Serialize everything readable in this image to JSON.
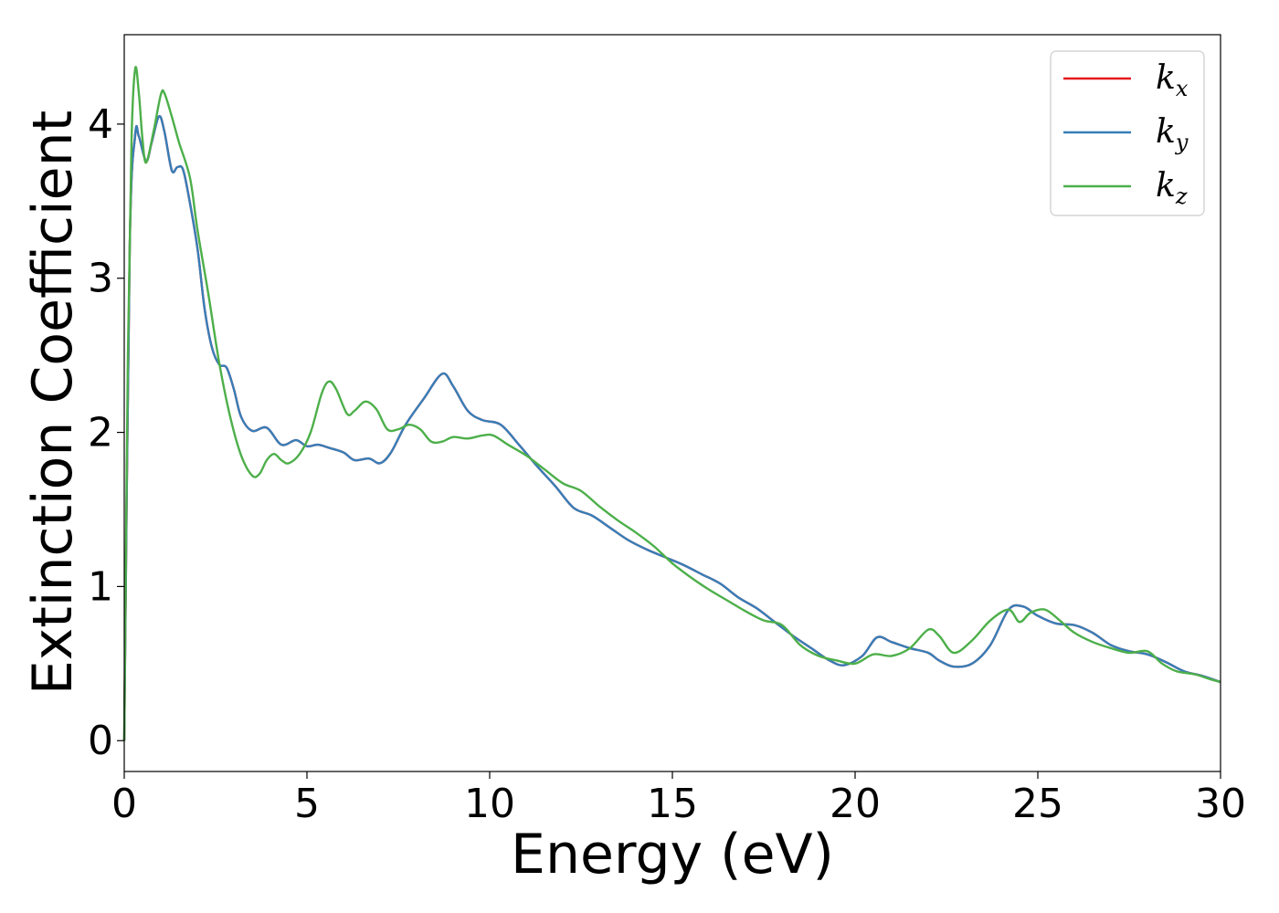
{
  "chart_data": {
    "type": "line",
    "xlabel": "Energy (eV)",
    "ylabel": "Extinction Coefficient",
    "xlim": [
      0,
      30
    ],
    "ylim": [
      -0.2,
      4.58
    ],
    "xticks": [
      "0",
      "5",
      "10",
      "15",
      "20",
      "25",
      "30"
    ],
    "yticks": [
      "0",
      "1",
      "2",
      "3",
      "4"
    ],
    "grid": false,
    "legend": {
      "placement": "top-right",
      "entries": [
        {
          "base": "k",
          "sub": "x",
          "color": "#e41a1c"
        },
        {
          "base": "k",
          "sub": "y",
          "color": "#377eb8"
        },
        {
          "base": "k",
          "sub": "z",
          "color": "#4daf4a"
        }
      ]
    },
    "series": [
      {
        "name": "kx",
        "color": "#e41a1c",
        "x": [
          0,
          0.15,
          0.3,
          0.4,
          0.6,
          0.75,
          0.95,
          1.1,
          1.3,
          1.45,
          1.6,
          1.75,
          2.0,
          2.2,
          2.4,
          2.6,
          2.8,
          3.0,
          3.2,
          3.5,
          3.9,
          4.3,
          4.7,
          5.0,
          5.3,
          5.6,
          6.0,
          6.3,
          6.7,
          7.0,
          7.3,
          7.7,
          8.2,
          8.7,
          9.0,
          9.4,
          9.8,
          10.3,
          10.8,
          11.3,
          11.8,
          12.3,
          12.8,
          13.3,
          13.8,
          14.3,
          14.8,
          15.3,
          15.8,
          16.3,
          16.8,
          17.3,
          17.8,
          18.3,
          18.8,
          19.3,
          19.7,
          20.2,
          20.6,
          21.0,
          21.5,
          22.0,
          22.3,
          22.7,
          23.2,
          23.7,
          24.2,
          24.6,
          25.0,
          25.5,
          26.0,
          26.5,
          27.0,
          27.5,
          28.0,
          28.5,
          29.0,
          29.5,
          30.0
        ],
        "y": [
          0,
          3.2,
          3.93,
          3.92,
          3.76,
          3.88,
          4.05,
          3.95,
          3.7,
          3.72,
          3.71,
          3.55,
          3.2,
          2.8,
          2.55,
          2.44,
          2.42,
          2.28,
          2.1,
          2.01,
          2.03,
          1.92,
          1.95,
          1.91,
          1.92,
          1.9,
          1.87,
          1.82,
          1.83,
          1.8,
          1.87,
          2.05,
          2.22,
          2.38,
          2.3,
          2.14,
          2.08,
          2.05,
          1.92,
          1.78,
          1.65,
          1.51,
          1.46,
          1.38,
          1.3,
          1.24,
          1.19,
          1.14,
          1.08,
          1.02,
          0.93,
          0.86,
          0.77,
          0.68,
          0.6,
          0.52,
          0.49,
          0.55,
          0.67,
          0.64,
          0.6,
          0.57,
          0.52,
          0.48,
          0.5,
          0.62,
          0.85,
          0.87,
          0.81,
          0.76,
          0.75,
          0.7,
          0.62,
          0.58,
          0.56,
          0.51,
          0.45,
          0.42,
          0.38
        ]
      },
      {
        "name": "ky",
        "color": "#377eb8",
        "x": [
          0,
          0.15,
          0.3,
          0.4,
          0.6,
          0.75,
          0.95,
          1.1,
          1.3,
          1.45,
          1.6,
          1.75,
          2.0,
          2.2,
          2.4,
          2.6,
          2.8,
          3.0,
          3.2,
          3.5,
          3.9,
          4.3,
          4.7,
          5.0,
          5.3,
          5.6,
          6.0,
          6.3,
          6.7,
          7.0,
          7.3,
          7.7,
          8.2,
          8.7,
          9.0,
          9.4,
          9.8,
          10.3,
          10.8,
          11.3,
          11.8,
          12.3,
          12.8,
          13.3,
          13.8,
          14.3,
          14.8,
          15.3,
          15.8,
          16.3,
          16.8,
          17.3,
          17.8,
          18.3,
          18.8,
          19.3,
          19.7,
          20.2,
          20.6,
          21.0,
          21.5,
          22.0,
          22.3,
          22.7,
          23.2,
          23.7,
          24.2,
          24.6,
          25.0,
          25.5,
          26.0,
          26.5,
          27.0,
          27.5,
          28.0,
          28.5,
          29.0,
          29.5,
          30.0
        ],
        "y": [
          0,
          3.2,
          3.93,
          3.92,
          3.76,
          3.88,
          4.05,
          3.95,
          3.7,
          3.72,
          3.71,
          3.55,
          3.2,
          2.8,
          2.55,
          2.44,
          2.42,
          2.28,
          2.1,
          2.01,
          2.03,
          1.92,
          1.95,
          1.91,
          1.92,
          1.9,
          1.87,
          1.82,
          1.83,
          1.8,
          1.87,
          2.05,
          2.22,
          2.38,
          2.3,
          2.14,
          2.08,
          2.05,
          1.92,
          1.78,
          1.65,
          1.51,
          1.46,
          1.38,
          1.3,
          1.24,
          1.19,
          1.14,
          1.08,
          1.02,
          0.93,
          0.86,
          0.77,
          0.68,
          0.6,
          0.52,
          0.49,
          0.55,
          0.67,
          0.64,
          0.6,
          0.57,
          0.52,
          0.48,
          0.5,
          0.62,
          0.85,
          0.87,
          0.81,
          0.76,
          0.75,
          0.7,
          0.62,
          0.58,
          0.56,
          0.51,
          0.45,
          0.42,
          0.38
        ]
      },
      {
        "name": "kz",
        "color": "#4daf4a",
        "x": [
          0,
          0.1,
          0.2,
          0.3,
          0.4,
          0.5,
          0.6,
          0.8,
          1.0,
          1.1,
          1.3,
          1.5,
          1.8,
          2.0,
          2.3,
          2.6,
          2.9,
          3.2,
          3.5,
          3.7,
          3.9,
          4.1,
          4.3,
          4.5,
          4.8,
          5.1,
          5.4,
          5.6,
          5.8,
          6.1,
          6.3,
          6.6,
          6.9,
          7.2,
          7.5,
          7.8,
          8.1,
          8.4,
          8.7,
          9.0,
          9.4,
          9.8,
          10.1,
          10.5,
          11.0,
          11.5,
          12.0,
          12.5,
          13.0,
          13.5,
          14.0,
          14.5,
          15.0,
          15.5,
          16.0,
          16.5,
          17.0,
          17.5,
          18.0,
          18.5,
          19.0,
          19.5,
          20.0,
          20.5,
          21.0,
          21.5,
          22.0,
          22.3,
          22.7,
          23.2,
          23.7,
          24.2,
          24.5,
          24.8,
          25.2,
          25.6,
          26.0,
          26.5,
          27.0,
          27.5,
          28.0,
          28.4,
          28.8,
          29.3,
          29.7,
          30.0
        ],
        "y": [
          0,
          2.5,
          3.9,
          4.36,
          4.2,
          3.9,
          3.75,
          3.95,
          4.19,
          4.2,
          4.05,
          3.88,
          3.65,
          3.32,
          2.9,
          2.45,
          2.1,
          1.85,
          1.72,
          1.73,
          1.82,
          1.86,
          1.82,
          1.8,
          1.86,
          2.0,
          2.25,
          2.33,
          2.28,
          2.12,
          2.14,
          2.2,
          2.15,
          2.02,
          2.02,
          2.05,
          2.02,
          1.94,
          1.94,
          1.97,
          1.96,
          1.98,
          1.98,
          1.92,
          1.85,
          1.76,
          1.67,
          1.62,
          1.52,
          1.43,
          1.35,
          1.26,
          1.15,
          1.06,
          0.98,
          0.91,
          0.84,
          0.78,
          0.75,
          0.62,
          0.55,
          0.52,
          0.5,
          0.56,
          0.55,
          0.6,
          0.72,
          0.68,
          0.57,
          0.65,
          0.78,
          0.85,
          0.77,
          0.83,
          0.85,
          0.78,
          0.7,
          0.64,
          0.6,
          0.57,
          0.58,
          0.5,
          0.45,
          0.43,
          0.4,
          0.38
        ]
      }
    ]
  }
}
